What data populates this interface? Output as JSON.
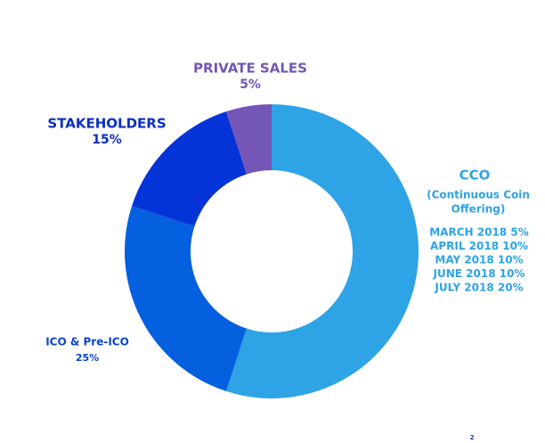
{
  "chart_data": {
    "type": "donut",
    "categories": [
      "CCO",
      "ICO & Pre-ICO",
      "STAKEHOLDERS",
      "PRIVATE SALES"
    ],
    "values": [
      55,
      25,
      15,
      5
    ],
    "value_labels": [
      null,
      "25%",
      "15%",
      "5%"
    ],
    "colors": [
      "#2ea3e6",
      "#0560e0",
      "#0433d8",
      "#7356b6"
    ],
    "label_colors": [
      "#2ea3e6",
      "#0a45cc",
      "#0a2fbf",
      "#7356b6"
    ],
    "subtitle_cco": [
      "(Continuous Coin",
      "Offering)"
    ],
    "cco_schedule": [
      "MARCH 2018 5%",
      "APRIL 2018 10%",
      "MAY 2018 10%",
      "JUNE 2018 10%",
      "JULY 2018 20%"
    ],
    "page_number": "2"
  }
}
